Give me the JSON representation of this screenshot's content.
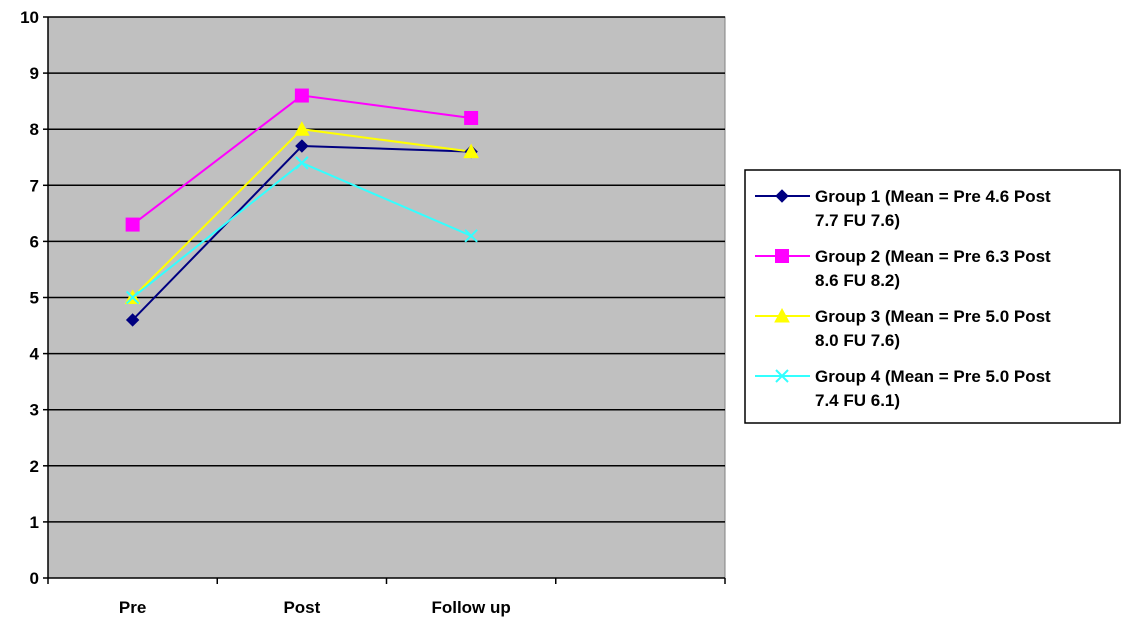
{
  "chart_data": {
    "type": "line",
    "title": "",
    "xlabel": "",
    "ylabel": "",
    "categories": [
      "Pre",
      "Post",
      "Follow up"
    ],
    "extra_category_slots": 1,
    "ylim": [
      0,
      10
    ],
    "yticks": [
      "0",
      "1",
      "2",
      "3",
      "4",
      "5",
      "6",
      "7",
      "8",
      "9",
      "10"
    ],
    "grid": true,
    "plot_background": "#c0c0c0",
    "legend_position": "right",
    "series": [
      {
        "name": "Group 1 (Mean = Pre 4.6 Post 7.7 FU 7.6)",
        "legend_lines": [
          "Group 1 (Mean = Pre 4.6 Post",
          "7.7 FU 7.6)"
        ],
        "values": [
          4.6,
          7.7,
          7.6
        ],
        "color": "#000080",
        "marker": "diamond"
      },
      {
        "name": "Group 2  (Mean = Pre 6.3 Post 8.6 FU 8.2)",
        "legend_lines": [
          "Group 2  (Mean = Pre 6.3 Post",
          "8.6 FU 8.2)"
        ],
        "values": [
          6.3,
          8.6,
          8.2
        ],
        "color": "#ff00ff",
        "marker": "square"
      },
      {
        "name": "Group 3 (Mean = Pre 5.0 Post 8.0 FU 7.6)",
        "legend_lines": [
          "Group 3 (Mean = Pre 5.0 Post",
          "8.0 FU 7.6)"
        ],
        "values": [
          5.0,
          8.0,
          7.6
        ],
        "color": "#ffff00",
        "marker": "triangle"
      },
      {
        "name": "Group 4 (Mean = Pre 5.0 Post 7.4 FU 6.1)",
        "legend_lines": [
          "Group 4 (Mean = Pre 5.0 Post",
          "7.4 FU 6.1)"
        ],
        "values": [
          5.0,
          7.4,
          6.1
        ],
        "color": "#33ffff",
        "marker": "x"
      }
    ]
  }
}
